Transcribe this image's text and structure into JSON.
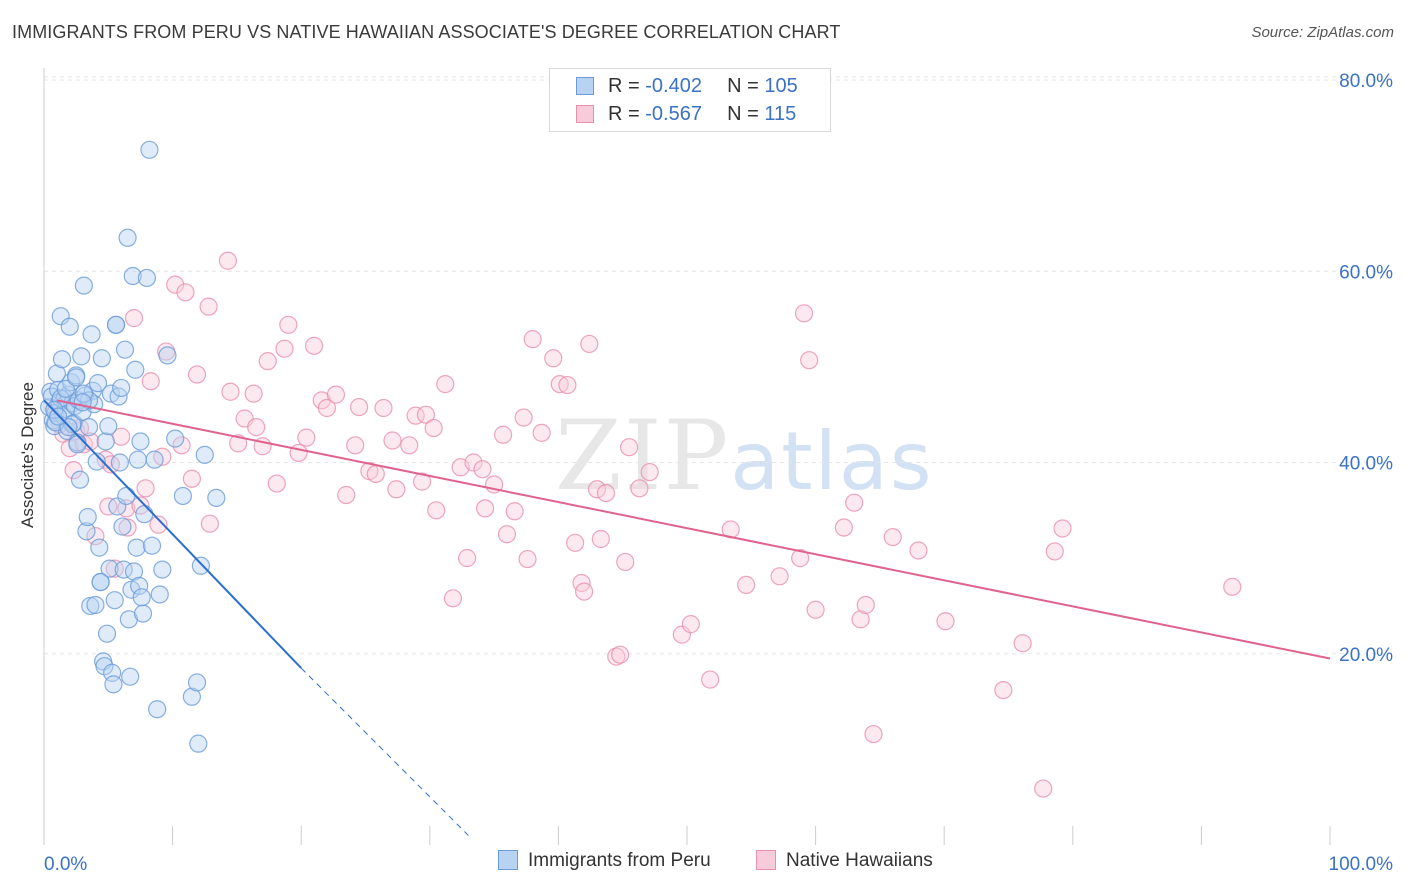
{
  "header": {
    "title": "IMMIGRANTS FROM PERU VS NATIVE HAWAIIAN ASSOCIATE'S DEGREE CORRELATION CHART",
    "source": "Source: ZipAtlas.com"
  },
  "legend_top": {
    "rows": [
      {
        "r_label": "R = ",
        "r_value": "-0.402",
        "n_label": "N = ",
        "n_value": "105"
      },
      {
        "r_label": "R = ",
        "r_value": "-0.567",
        "n_label": "N = ",
        "n_value": "115"
      }
    ]
  },
  "legend_bottom": {
    "items": [
      {
        "label": "Immigrants from Peru"
      },
      {
        "label": "Native Hawaiians"
      }
    ]
  },
  "watermark": {
    "zip": "ZIP",
    "atlas": "atlas"
  },
  "colors": {
    "peru_fill": "#b8d3f2",
    "peru_stroke": "#6a9bd8",
    "peru_line": "#2e6fce",
    "hawaii_fill": "#f8cbdb",
    "hawaii_stroke": "#e88fae",
    "hawaii_line": "#e0628f",
    "grid": "#e6e6e6",
    "tick_text": "#3a72c4"
  },
  "chart_data": {
    "type": "scatter",
    "title": "IMMIGRANTS FROM PERU VS NATIVE HAWAIIAN ASSOCIATE'S DEGREE CORRELATION CHART",
    "xlabel": "",
    "ylabel": "Associate's Degree",
    "xlim": [
      0,
      100
    ],
    "ylim": [
      0,
      80
    ],
    "x_tick_labels": [
      "0.0%",
      "100.0%"
    ],
    "y_ticks": [
      20,
      40,
      60,
      80
    ],
    "y_tick_labels": [
      "20.0%",
      "40.0%",
      "60.0%",
      "80.0%"
    ],
    "grid": true,
    "legend_position": "top-center",
    "series": [
      {
        "name": "Immigrants from Peru",
        "R": -0.402,
        "N": 105,
        "trend": {
          "x": [
            0,
            20
          ],
          "y": [
            46.5,
            18.5
          ],
          "dashed_to": [
            33,
            1
          ]
        },
        "points": [
          [
            0.4,
            45.8
          ],
          [
            0.5,
            47.4
          ],
          [
            0.6,
            46.9
          ],
          [
            0.7,
            44.4
          ],
          [
            0.8,
            43.8
          ],
          [
            0.9,
            45.2
          ],
          [
            1.0,
            49.3
          ],
          [
            1.1,
            47.6
          ],
          [
            1.2,
            46.3
          ],
          [
            1.3,
            55.3
          ],
          [
            1.4,
            50.8
          ],
          [
            1.5,
            44.9
          ],
          [
            1.6,
            46.7
          ],
          [
            1.7,
            45.6
          ],
          [
            1.8,
            43.3
          ],
          [
            1.9,
            47.1
          ],
          [
            2.0,
            54.2
          ],
          [
            2.1,
            48.4
          ],
          [
            2.2,
            46.2
          ],
          [
            2.3,
            44.1
          ],
          [
            2.4,
            45.9
          ],
          [
            2.5,
            49.1
          ],
          [
            2.6,
            42.1
          ],
          [
            2.7,
            46.5
          ],
          [
            2.8,
            38.2
          ],
          [
            2.9,
            51.1
          ],
          [
            3.0,
            45.3
          ],
          [
            3.1,
            58.5
          ],
          [
            3.2,
            47.0
          ],
          [
            3.3,
            32.8
          ],
          [
            3.4,
            34.3
          ],
          [
            3.5,
            43.7
          ],
          [
            3.6,
            25.0
          ],
          [
            3.7,
            53.4
          ],
          [
            3.8,
            47.5
          ],
          [
            3.9,
            46.1
          ],
          [
            4.0,
            25.1
          ],
          [
            4.1,
            40.1
          ],
          [
            4.2,
            48.3
          ],
          [
            4.3,
            31.1
          ],
          [
            4.4,
            27.5
          ],
          [
            4.5,
            50.9
          ],
          [
            4.6,
            19.2
          ],
          [
            4.7,
            18.7
          ],
          [
            4.8,
            42.2
          ],
          [
            4.9,
            22.1
          ],
          [
            5.0,
            43.8
          ],
          [
            5.1,
            28.9
          ],
          [
            5.2,
            47.2
          ],
          [
            5.3,
            18.0
          ],
          [
            5.4,
            16.8
          ],
          [
            5.5,
            25.6
          ],
          [
            5.6,
            54.4
          ],
          [
            5.7,
            35.4
          ],
          [
            5.8,
            46.9
          ],
          [
            5.9,
            40.0
          ],
          [
            6.0,
            47.8
          ],
          [
            6.1,
            33.3
          ],
          [
            6.2,
            28.8
          ],
          [
            6.3,
            51.8
          ],
          [
            6.4,
            36.5
          ],
          [
            6.5,
            63.5
          ],
          [
            6.6,
            23.6
          ],
          [
            6.7,
            17.6
          ],
          [
            6.8,
            26.7
          ],
          [
            6.9,
            59.5
          ],
          [
            7.0,
            28.6
          ],
          [
            7.1,
            49.7
          ],
          [
            7.2,
            31.1
          ],
          [
            7.3,
            40.3
          ],
          [
            7.4,
            27.1
          ],
          [
            7.5,
            42.2
          ],
          [
            7.6,
            25.9
          ],
          [
            7.7,
            24.2
          ],
          [
            7.8,
            34.6
          ],
          [
            8.0,
            59.3
          ],
          [
            8.2,
            72.7
          ],
          [
            8.4,
            31.3
          ],
          [
            8.6,
            40.3
          ],
          [
            8.8,
            14.2
          ],
          [
            9.0,
            26.2
          ],
          [
            9.2,
            28.8
          ],
          [
            9.6,
            51.2
          ],
          [
            10.2,
            42.5
          ],
          [
            10.8,
            36.5
          ],
          [
            11.5,
            15.5
          ],
          [
            12.2,
            29.2
          ],
          [
            11.9,
            17.0
          ],
          [
            12.5,
            40.8
          ],
          [
            13.4,
            36.3
          ],
          [
            12.0,
            10.6
          ],
          [
            1.3,
            46.7
          ],
          [
            2.2,
            44.0
          ],
          [
            3.5,
            46.5
          ],
          [
            0.9,
            44.2
          ],
          [
            1.7,
            47.7
          ],
          [
            2.6,
            41.9
          ],
          [
            0.8,
            45.5
          ],
          [
            1.9,
            43.7
          ],
          [
            4.4,
            27.5
          ],
          [
            3.1,
            47.2
          ],
          [
            5.6,
            54.4
          ],
          [
            1.1,
            44.8
          ],
          [
            2.5,
            48.9
          ],
          [
            3.0,
            46.3
          ]
        ]
      },
      {
        "name": "Native Hawaiians",
        "R": -0.567,
        "N": 115,
        "trend": {
          "x": [
            1,
            100
          ],
          "y": [
            46.5,
            19.5
          ]
        },
        "points": [
          [
            1.5,
            43.0
          ],
          [
            2.0,
            41.5
          ],
          [
            2.3,
            39.2
          ],
          [
            2.5,
            43.3
          ],
          [
            3.1,
            41.9
          ],
          [
            3.6,
            42.2
          ],
          [
            4.0,
            32.3
          ],
          [
            4.8,
            40.3
          ],
          [
            5.0,
            35.4
          ],
          [
            5.2,
            39.8
          ],
          [
            5.5,
            28.9
          ],
          [
            6.0,
            42.7
          ],
          [
            6.4,
            35.2
          ],
          [
            6.5,
            33.2
          ],
          [
            7.0,
            55.1
          ],
          [
            7.5,
            35.5
          ],
          [
            7.9,
            37.3
          ],
          [
            8.3,
            48.5
          ],
          [
            8.9,
            33.5
          ],
          [
            9.2,
            40.6
          ],
          [
            9.5,
            51.6
          ],
          [
            10.2,
            58.6
          ],
          [
            10.7,
            41.8
          ],
          [
            11.0,
            57.8
          ],
          [
            11.5,
            38.3
          ],
          [
            11.9,
            49.2
          ],
          [
            12.8,
            56.3
          ],
          [
            12.9,
            33.6
          ],
          [
            14.3,
            61.1
          ],
          [
            14.5,
            47.4
          ],
          [
            15.1,
            42.0
          ],
          [
            15.6,
            44.6
          ],
          [
            16.3,
            47.2
          ],
          [
            16.5,
            43.7
          ],
          [
            17.0,
            41.7
          ],
          [
            17.4,
            50.6
          ],
          [
            18.1,
            37.8
          ],
          [
            18.7,
            51.9
          ],
          [
            19.0,
            54.4
          ],
          [
            19.8,
            41.0
          ],
          [
            20.4,
            42.6
          ],
          [
            21.0,
            52.2
          ],
          [
            21.6,
            46.5
          ],
          [
            22.0,
            45.7
          ],
          [
            22.7,
            47.1
          ],
          [
            23.5,
            36.6
          ],
          [
            24.2,
            41.8
          ],
          [
            24.5,
            45.8
          ],
          [
            25.3,
            39.1
          ],
          [
            25.8,
            38.8
          ],
          [
            26.4,
            45.7
          ],
          [
            27.1,
            42.3
          ],
          [
            27.4,
            37.2
          ],
          [
            28.4,
            41.8
          ],
          [
            28.9,
            44.9
          ],
          [
            29.4,
            38.0
          ],
          [
            29.7,
            45.0
          ],
          [
            30.3,
            43.6
          ],
          [
            30.5,
            35.0
          ],
          [
            31.2,
            48.2
          ],
          [
            31.8,
            25.8
          ],
          [
            32.4,
            39.5
          ],
          [
            32.9,
            30.0
          ],
          [
            33.4,
            40.0
          ],
          [
            34.1,
            39.3
          ],
          [
            34.3,
            35.2
          ],
          [
            35.0,
            37.7
          ],
          [
            35.7,
            42.9
          ],
          [
            36.0,
            32.5
          ],
          [
            36.6,
            34.9
          ],
          [
            37.3,
            44.7
          ],
          [
            37.6,
            29.9
          ],
          [
            38.0,
            52.9
          ],
          [
            38.7,
            43.1
          ],
          [
            39.6,
            50.9
          ],
          [
            40.1,
            48.2
          ],
          [
            40.7,
            48.1
          ],
          [
            41.3,
            31.6
          ],
          [
            41.8,
            27.4
          ],
          [
            42.0,
            26.5
          ],
          [
            42.4,
            52.4
          ],
          [
            43.0,
            37.2
          ],
          [
            43.3,
            32.0
          ],
          [
            43.7,
            36.8
          ],
          [
            44.5,
            19.7
          ],
          [
            44.8,
            19.9
          ],
          [
            45.2,
            29.6
          ],
          [
            45.5,
            41.6
          ],
          [
            46.3,
            37.3
          ],
          [
            47.1,
            39.0
          ],
          [
            49.6,
            22.0
          ],
          [
            50.3,
            23.1
          ],
          [
            51.8,
            17.3
          ],
          [
            53.4,
            33.0
          ],
          [
            54.6,
            27.2
          ],
          [
            57.2,
            28.1
          ],
          [
            58.8,
            30.0
          ],
          [
            59.5,
            50.7
          ],
          [
            60.0,
            24.6
          ],
          [
            62.2,
            33.2
          ],
          [
            63.0,
            35.8
          ],
          [
            63.5,
            23.6
          ],
          [
            63.9,
            25.1
          ],
          [
            64.5,
            11.6
          ],
          [
            66.0,
            32.2
          ],
          [
            68.0,
            30.8
          ],
          [
            70.1,
            23.4
          ],
          [
            74.6,
            16.2
          ],
          [
            76.1,
            21.1
          ],
          [
            77.7,
            5.9
          ],
          [
            78.6,
            30.7
          ],
          [
            79.2,
            33.1
          ],
          [
            59.1,
            55.6
          ],
          [
            92.4,
            27.0
          ],
          [
            0.8,
            45.5
          ],
          [
            1.2,
            44.0
          ],
          [
            2.8,
            43.6
          ]
        ]
      }
    ]
  }
}
